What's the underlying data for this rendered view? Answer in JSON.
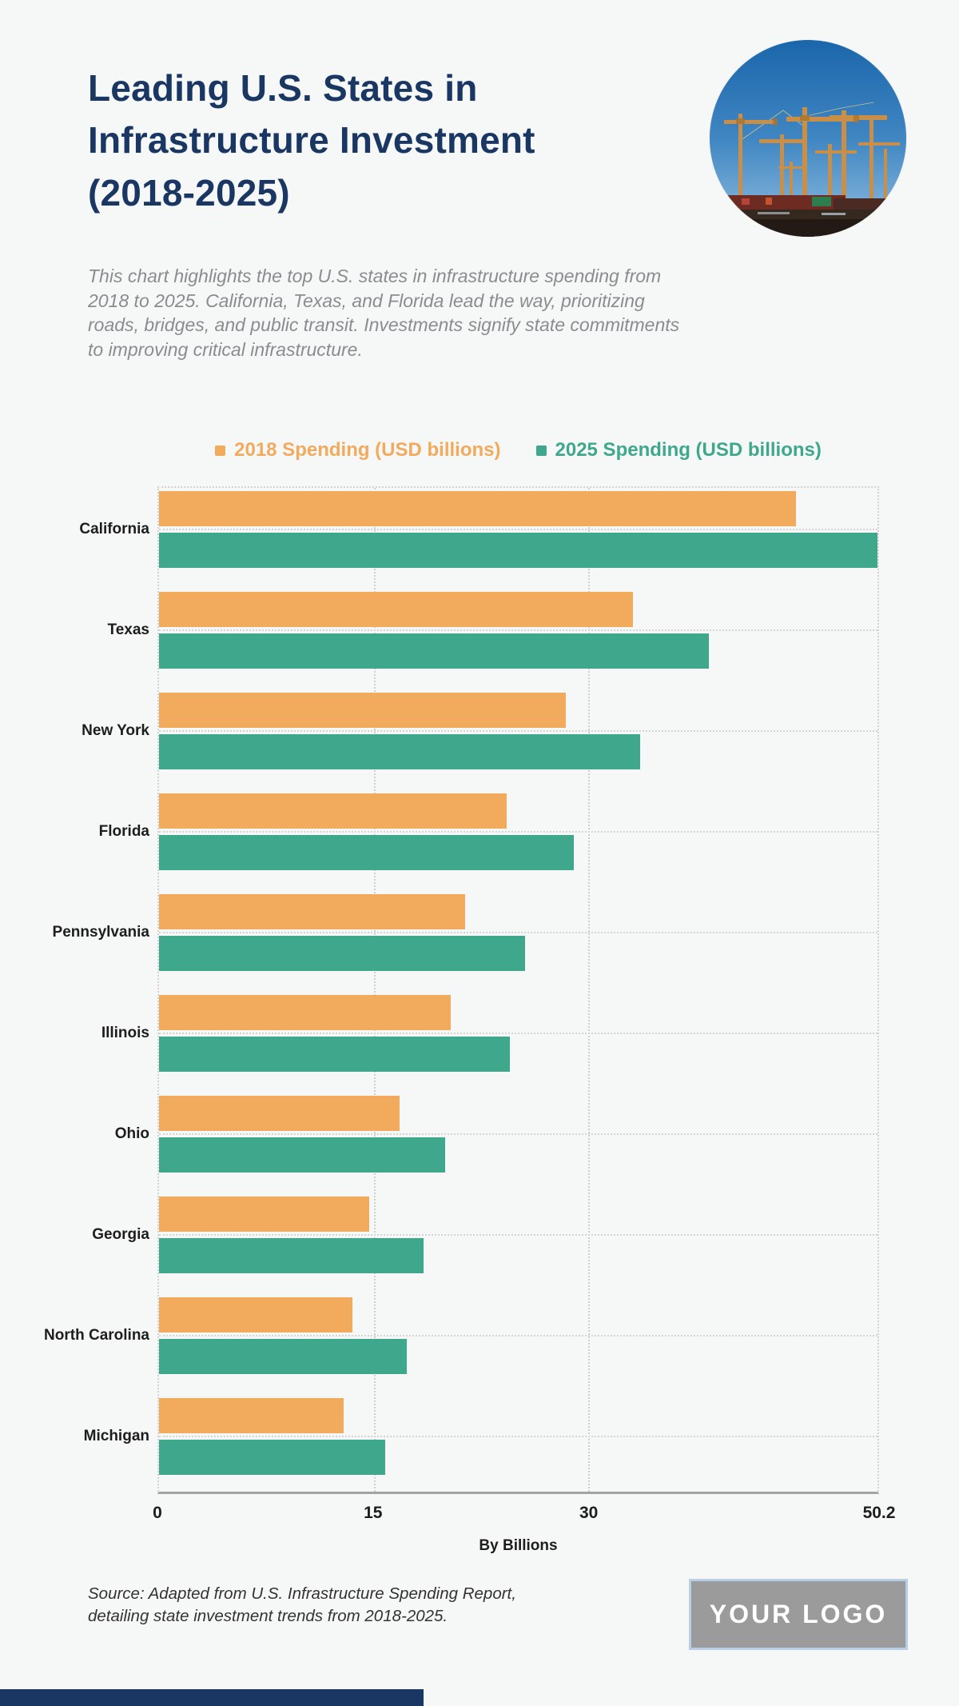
{
  "page": {
    "title_lines": [
      "Leading U.S. States in",
      "Infrastructure Investment",
      "(2018-2025)"
    ],
    "description": "This chart highlights the top U.S. states in infrastructure spending from 2018 to 2025. California, Texas, and Florida lead the way, prioritizing roads, bridges, and public transit. Investments signify state commitments to improving critical infrastructure.",
    "hero_image": "construction-cranes-photo",
    "source": {
      "line1": "Source: Adapted from U.S. Infrastructure Spending Report,",
      "line2": "detailing state investment trends from 2018-2025."
    },
    "logo_text": "YOUR LOGO"
  },
  "colors": {
    "background": "#F6F7F7",
    "navy": "#1A3763",
    "orange_2018": "#F2AA5D",
    "teal_2025": "#3EA78C",
    "text_dark": "#1D1D1D",
    "text_gray_italic": "#8B8C8E",
    "logo_gray": "#9B9B9B",
    "logo_border_blue": "#B7CEE5"
  },
  "chart_data": {
    "type": "bar",
    "orientation": "horizontal",
    "title": "Leading U.S. States in Infrastructure Investment (2018-2025)",
    "categories": [
      "California",
      "Texas",
      "New York",
      "Florida",
      "Pennsylvania",
      "Illinois",
      "Ohio",
      "Georgia",
      "North Carolina",
      "Michigan"
    ],
    "series": [
      {
        "name": "2018 Spending (USD billions)",
        "color": "#F2AA5D",
        "values": [
          44.5,
          33.1,
          28.4,
          24.3,
          21.4,
          20.4,
          16.8,
          14.7,
          13.5,
          12.9
        ]
      },
      {
        "name": "2025 Spending (USD billions)",
        "color": "#3EA78C",
        "values": [
          50.2,
          38.4,
          33.6,
          29.0,
          25.6,
          24.5,
          20.0,
          18.5,
          17.3,
          15.8
        ]
      }
    ],
    "xlabel": "By Billions",
    "x_ticks": [
      0,
      15,
      30,
      50.2
    ],
    "xlim": [
      0,
      50.2
    ],
    "grid": "dotted",
    "legend_position": "top"
  }
}
